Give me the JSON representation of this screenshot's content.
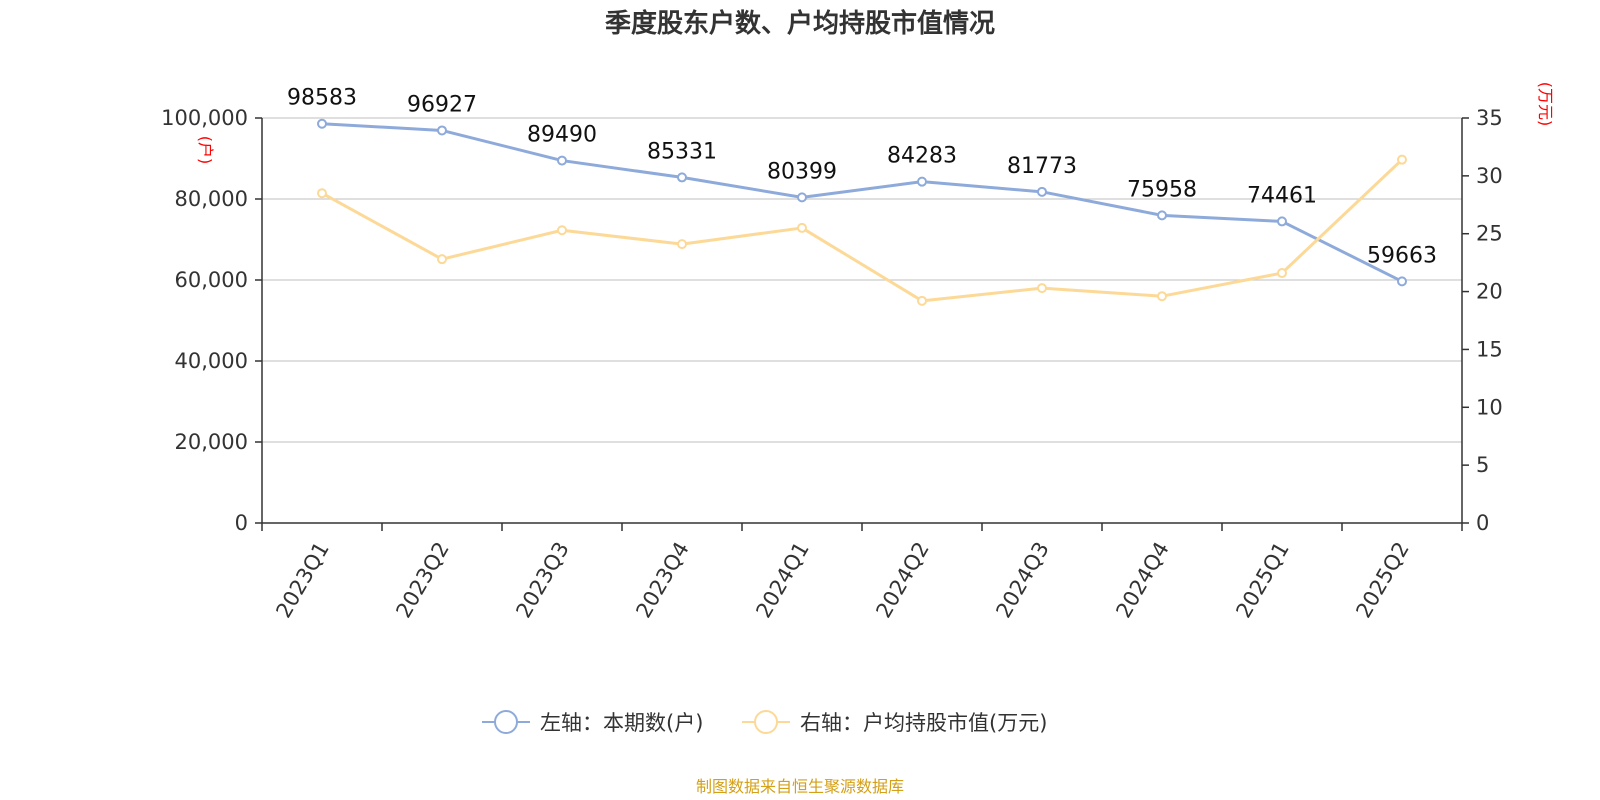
{
  "chart_data": {
    "type": "line",
    "title": "季度股东户数、户均持股市值情况",
    "categories": [
      "2023Q1",
      "2023Q2",
      "2023Q3",
      "2023Q4",
      "2024Q1",
      "2024Q2",
      "2024Q3",
      "2024Q4",
      "2025Q1",
      "2025Q2"
    ],
    "series": [
      {
        "name": "左轴：本期数(户)",
        "axis": "left",
        "color": "#8eaadb",
        "values": [
          98583,
          96927,
          89490,
          85331,
          80399,
          84283,
          81773,
          75958,
          74461,
          59663
        ],
        "labels": [
          "98583",
          "96927",
          "89490",
          "85331",
          "80399",
          "84283",
          "81773",
          "75958",
          "74461",
          "59663"
        ]
      },
      {
        "name": "右轴：户均持股市值(万元)",
        "axis": "right",
        "color": "#fcd997",
        "values": [
          28.5,
          22.8,
          25.3,
          24.1,
          25.5,
          19.2,
          20.3,
          19.6,
          21.6,
          31.4
        ]
      }
    ],
    "y_left": {
      "unit": "(户)",
      "min": 0,
      "max": 100000,
      "ticks": [
        0,
        20000,
        40000,
        60000,
        80000,
        100000
      ],
      "tick_labels": [
        "0",
        "20,000",
        "40,000",
        "60,000",
        "80,000",
        "100,000"
      ]
    },
    "y_right": {
      "unit": "(万元)",
      "min": 0,
      "max": 35,
      "ticks": [
        0,
        5,
        10,
        15,
        20,
        25,
        30,
        35
      ],
      "tick_labels": [
        "0",
        "5",
        "10",
        "15",
        "20",
        "25",
        "30",
        "35"
      ]
    },
    "grid": true,
    "legend_position": "bottom"
  },
  "source_text": "制图数据来自恒生聚源数据库"
}
